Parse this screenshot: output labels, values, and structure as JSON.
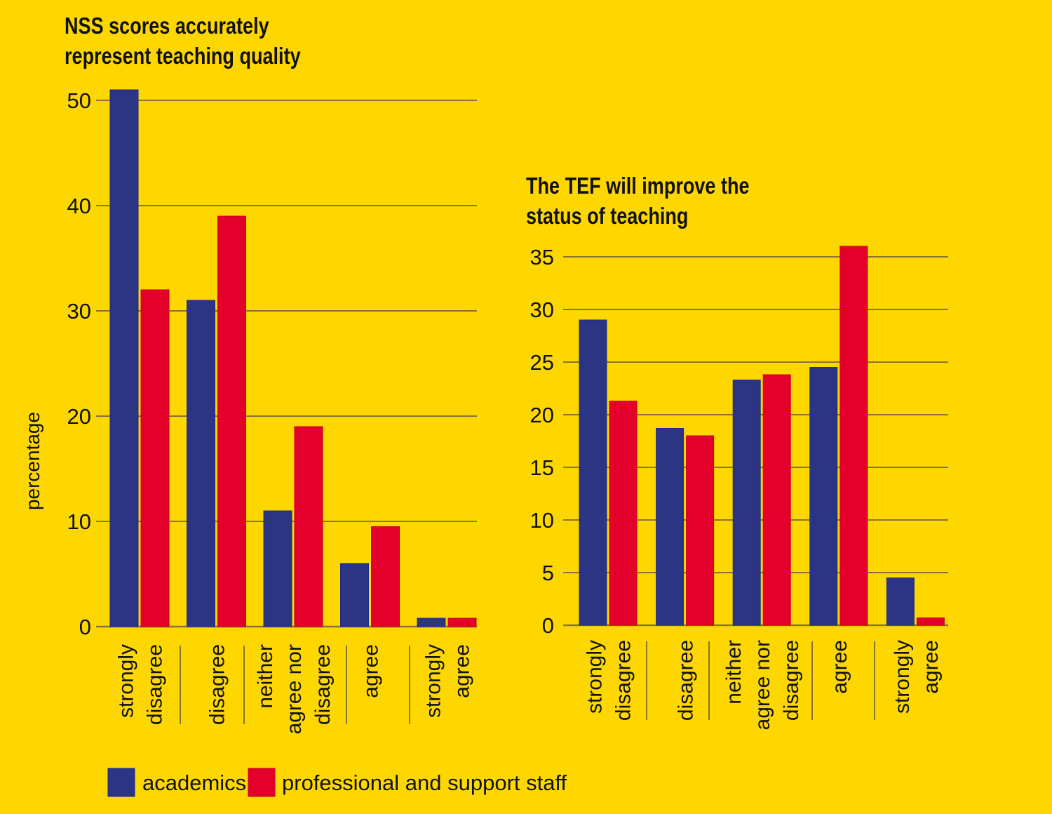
{
  "colors": {
    "background": "#FFD700",
    "academics": "#2B3584",
    "professional": "#E3002B",
    "gridline": "#8A7430",
    "text": "#111111"
  },
  "legend": [
    {
      "label": "academics",
      "color": "#2B3584"
    },
    {
      "label": "professional and support staff",
      "color": "#E3002B"
    }
  ],
  "chart_data": [
    {
      "type": "bar",
      "title": [
        "NSS scores accurately",
        "represent teaching quality"
      ],
      "ylabel": "percentage",
      "xlabel": "",
      "ylim": [
        0,
        50
      ],
      "yticks": [
        0,
        10,
        20,
        30,
        40,
        50
      ],
      "grid": true,
      "categories": [
        [
          "strongly",
          "disagree"
        ],
        [
          "disagree"
        ],
        [
          "neither",
          "agree nor",
          "disagree"
        ],
        [
          "agree"
        ],
        [
          "strongly",
          "agree"
        ]
      ],
      "series": [
        {
          "name": "academics",
          "values": [
            51,
            31,
            11,
            6,
            0.8
          ]
        },
        {
          "name": "professional and support staff",
          "values": [
            32,
            39,
            19,
            9.5,
            0.8
          ]
        }
      ]
    },
    {
      "type": "bar",
      "title": [
        "The TEF will improve the",
        "status of teaching"
      ],
      "ylabel": "",
      "xlabel": "",
      "ylim": [
        0,
        35
      ],
      "yticks": [
        0,
        5,
        10,
        15,
        20,
        25,
        30,
        35
      ],
      "grid": true,
      "categories": [
        [
          "strongly",
          "disagree"
        ],
        [
          "disagree"
        ],
        [
          "neither",
          "agree nor",
          "disagree"
        ],
        [
          "agree"
        ],
        [
          "strongly",
          "agree"
        ]
      ],
      "series": [
        {
          "name": "academics",
          "values": [
            29,
            18.7,
            23.3,
            24.5,
            4.5
          ]
        },
        {
          "name": "professional and support staff",
          "values": [
            21.3,
            18,
            23.8,
            36,
            0.7
          ]
        }
      ]
    }
  ]
}
